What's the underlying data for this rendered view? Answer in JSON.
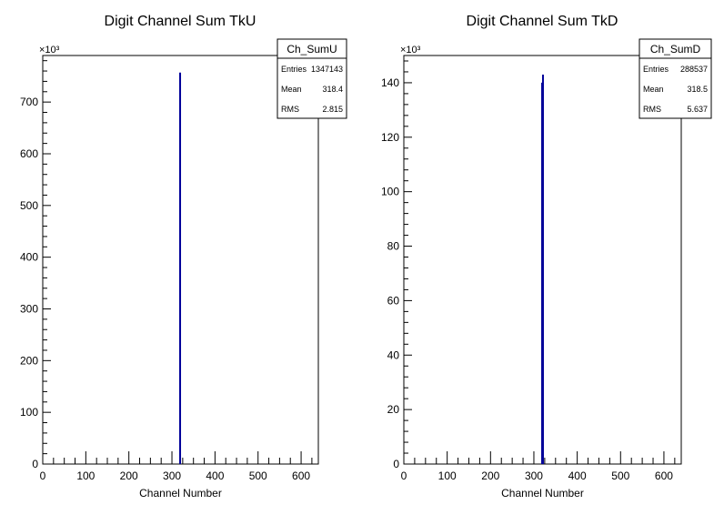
{
  "chart_data": [
    {
      "type": "bar",
      "title": "Digit Channel Sum TkU",
      "xlabel": "Channel Number",
      "ylabel": "",
      "y_multiplier": "×10³",
      "xlim": [
        0,
        640
      ],
      "ylim": [
        0,
        790
      ],
      "x_ticks": [
        0,
        100,
        200,
        300,
        400,
        500,
        600
      ],
      "y_ticks": [
        0,
        100,
        200,
        300,
        400,
        500,
        600,
        700
      ],
      "x": [
        319
      ],
      "values": [
        757
      ],
      "series_color": "#000099",
      "stats": {
        "name": "Ch_SumU",
        "rows": [
          {
            "label": "Entries",
            "value": "1347143"
          },
          {
            "label": "Mean",
            "value": "318.4"
          },
          {
            "label": "RMS",
            "value": "2.815"
          }
        ]
      }
    },
    {
      "type": "bar",
      "title": "Digit Channel Sum TkD",
      "xlabel": "Channel Number",
      "ylabel": "",
      "y_multiplier": "×10³",
      "xlim": [
        0,
        640
      ],
      "ylim": [
        0,
        150
      ],
      "x_ticks": [
        0,
        100,
        200,
        300,
        400,
        500,
        600
      ],
      "y_ticks": [
        0,
        20,
        40,
        60,
        80,
        100,
        120,
        140
      ],
      "x": [
        319,
        321
      ],
      "values": [
        140,
        143
      ],
      "series_color": "#000099",
      "stats": {
        "name": "Ch_SumD",
        "rows": [
          {
            "label": "Entries",
            "value": "288537"
          },
          {
            "label": "Mean",
            "value": "318.5"
          },
          {
            "label": "RMS",
            "value": "5.637"
          }
        ]
      }
    }
  ]
}
